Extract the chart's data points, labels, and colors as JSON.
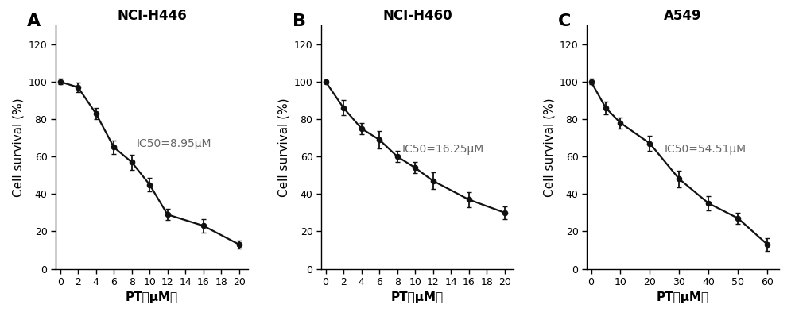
{
  "panels": [
    {
      "label": "A",
      "title": "NCI-H446",
      "ic50_text": "IC50=8.95μM",
      "x": [
        0,
        2,
        4,
        6,
        8,
        10,
        12,
        16,
        20
      ],
      "y": [
        100,
        97,
        83,
        65,
        57,
        45,
        29,
        23,
        13
      ],
      "yerr": [
        1.5,
        2.5,
        3.0,
        3.5,
        4.0,
        3.5,
        3.0,
        3.5,
        2.0
      ],
      "xlim": [
        -0.5,
        21
      ],
      "xticks": [
        0,
        2,
        4,
        6,
        8,
        10,
        12,
        14,
        16,
        18,
        20
      ],
      "xticklabels": [
        "0",
        "2",
        "4",
        "6",
        "8",
        "10",
        "12",
        "14",
        "16",
        "18",
        "20"
      ],
      "ylim": [
        0,
        130
      ],
      "yticks": [
        0,
        20,
        40,
        60,
        80,
        100,
        120
      ],
      "ic50_x": 8.5,
      "ic50_y": 65
    },
    {
      "label": "B",
      "title": "NCI-H460",
      "ic50_text": "IC50=16.25μM",
      "x": [
        0,
        2,
        4,
        6,
        8,
        10,
        12,
        16,
        20
      ],
      "y": [
        100,
        86,
        75,
        69,
        60,
        54,
        47,
        37,
        30
      ],
      "yerr": [
        1.0,
        4.0,
        3.0,
        4.5,
        3.0,
        3.0,
        4.5,
        4.0,
        3.5
      ],
      "xlim": [
        -0.5,
        21
      ],
      "xticks": [
        0,
        2,
        4,
        6,
        8,
        10,
        12,
        14,
        16,
        18,
        20
      ],
      "xticklabels": [
        "0",
        "2",
        "4",
        "6",
        "8",
        "10",
        "12",
        "14",
        "16",
        "18",
        "20"
      ],
      "ylim": [
        0,
        130
      ],
      "yticks": [
        0,
        20,
        40,
        60,
        80,
        100,
        120
      ],
      "ic50_x": 8.5,
      "ic50_y": 62
    },
    {
      "label": "C",
      "title": "A549",
      "ic50_text": "IC50=54.51μM",
      "x": [
        0,
        5,
        10,
        20,
        30,
        40,
        50,
        60
      ],
      "y": [
        100,
        86,
        78,
        67,
        48,
        35,
        27,
        13
      ],
      "yerr": [
        1.5,
        3.5,
        3.0,
        4.0,
        4.5,
        4.0,
        3.0,
        3.5
      ],
      "xlim": [
        -1.5,
        64
      ],
      "xticks": [
        0,
        10,
        20,
        30,
        40,
        50,
        60
      ],
      "xticklabels": [
        "0",
        "10",
        "20",
        "30",
        "40",
        "50",
        "60"
      ],
      "ylim": [
        0,
        130
      ],
      "yticks": [
        0,
        20,
        40,
        60,
        80,
        100,
        120
      ],
      "ic50_x": 25,
      "ic50_y": 62
    }
  ],
  "xlabel": "PT（μM）",
  "ylabel": "Cell survival (%)",
  "line_color": "#111111",
  "markersize": 4.5,
  "linewidth": 1.6,
  "capsize": 2.5,
  "elinewidth": 1.3,
  "label_fontsize": 16,
  "title_fontsize": 12,
  "tick_fontsize": 9,
  "axis_label_fontsize": 11,
  "ic50_fontsize": 10
}
